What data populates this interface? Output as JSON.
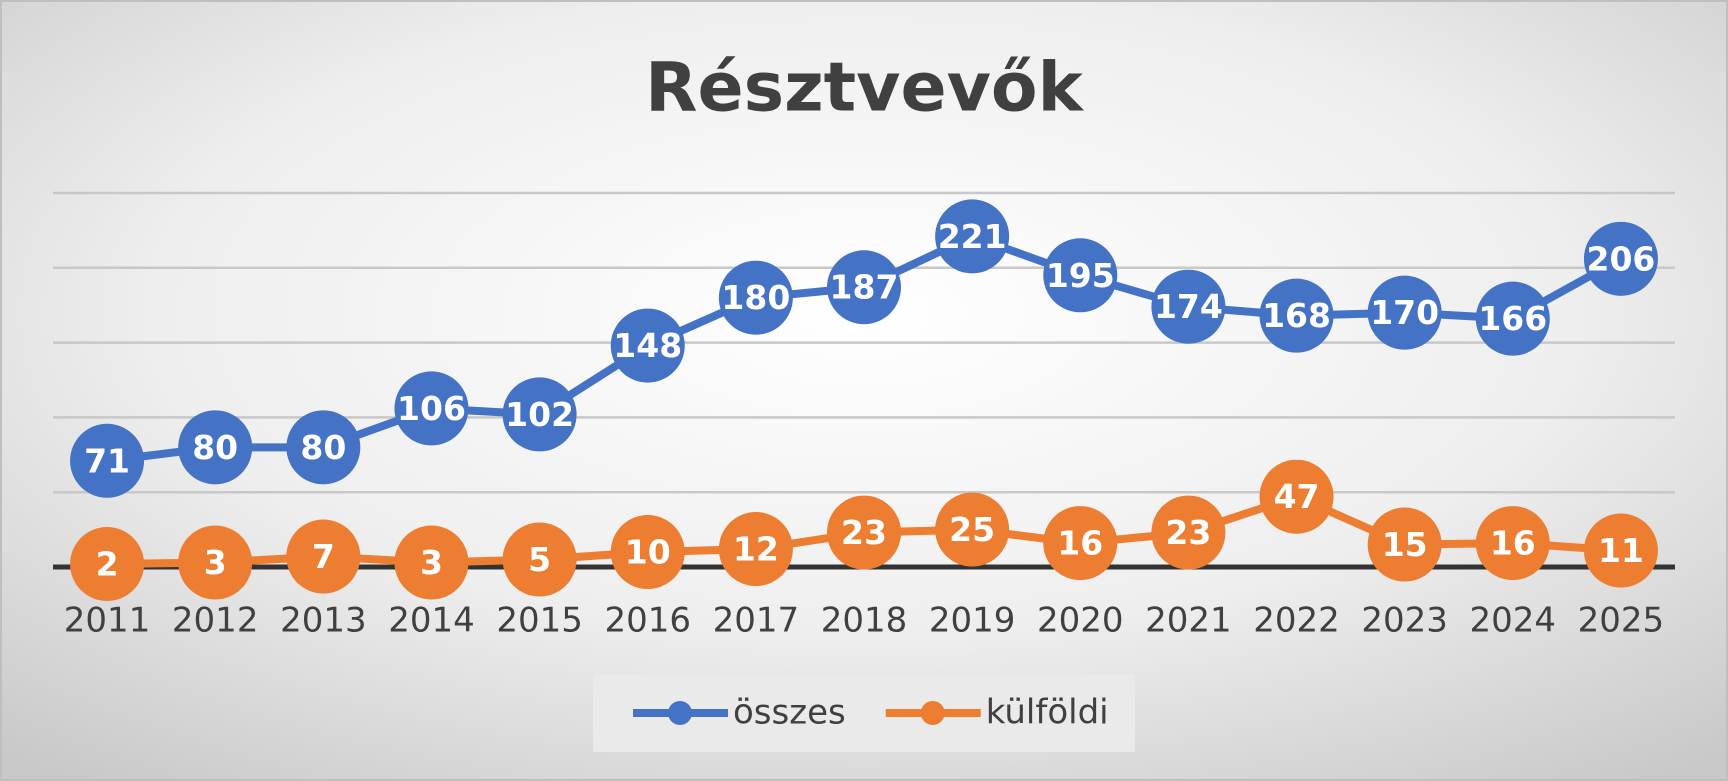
{
  "chart_data": {
    "type": "line",
    "title": "Résztvevők",
    "categories": [
      "2011",
      "2012",
      "2013",
      "2014",
      "2015",
      "2016",
      "2017",
      "2018",
      "2019",
      "2020",
      "2021",
      "2022",
      "2023",
      "2024",
      "2025"
    ],
    "series": [
      {
        "name": "összes",
        "color": "#4472c4",
        "values": [
          71,
          80,
          80,
          106,
          102,
          148,
          180,
          187,
          221,
          195,
          174,
          168,
          170,
          166,
          206
        ]
      },
      {
        "name": "külföldi",
        "color": "#ed7d31",
        "values": [
          2,
          3,
          7,
          3,
          5,
          10,
          12,
          23,
          25,
          16,
          23,
          47,
          15,
          16,
          11
        ]
      }
    ],
    "ylim": [
      0,
      250
    ],
    "yticks": [
      0,
      50,
      100,
      150,
      200,
      250
    ],
    "grid": true,
    "legend": "bottom"
  }
}
